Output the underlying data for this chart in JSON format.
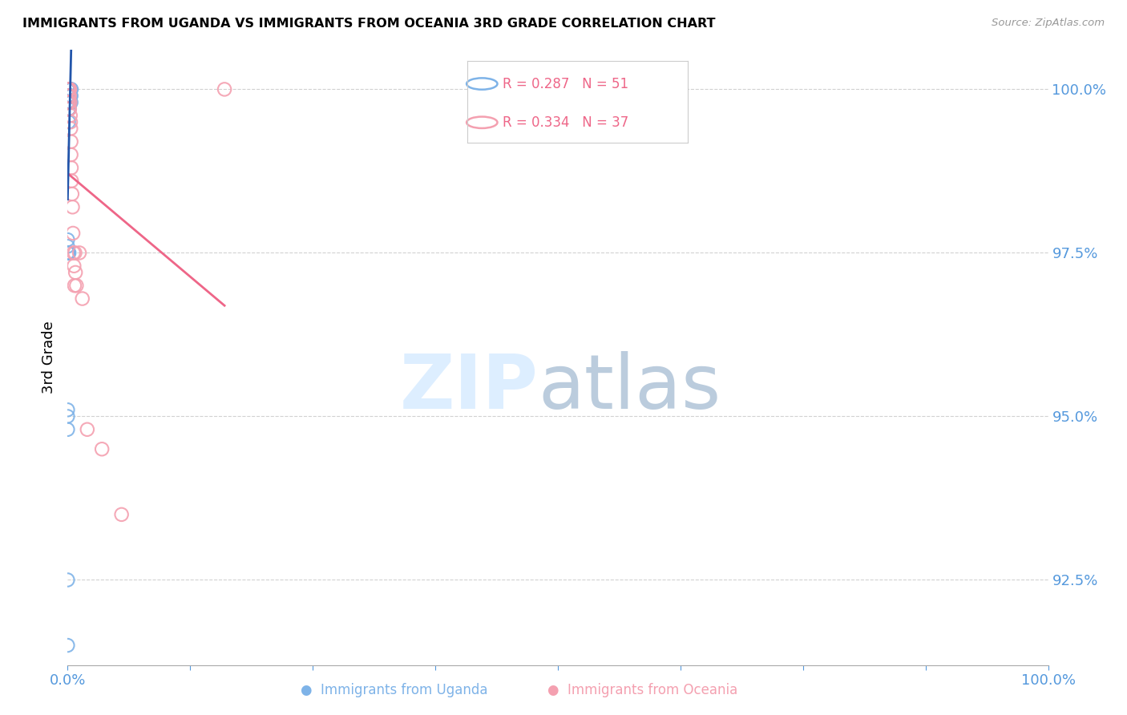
{
  "title": "IMMIGRANTS FROM UGANDA VS IMMIGRANTS FROM OCEANIA 3RD GRADE CORRELATION CHART",
  "source": "Source: ZipAtlas.com",
  "ylabel": "3rd Grade",
  "ytick_values": [
    92.5,
    95.0,
    97.5,
    100.0
  ],
  "xlim": [
    0.0,
    100.0
  ],
  "ylim": [
    91.2,
    100.6
  ],
  "color_uganda": "#7EB3E8",
  "color_oceania": "#F4A0B0",
  "color_trendline_uganda": "#2255AA",
  "color_trendline_oceania": "#EE6688",
  "color_axis_labels": "#5599DD",
  "background_color": "#FFFFFF",
  "uganda_x": [
    0.0,
    0.0,
    0.0,
    0.0,
    0.0,
    0.0,
    0.0,
    0.0,
    0.0,
    0.0,
    0.05,
    0.05,
    0.05,
    0.05,
    0.08,
    0.08,
    0.1,
    0.1,
    0.1,
    0.1,
    0.12,
    0.12,
    0.15,
    0.15,
    0.15,
    0.18,
    0.18,
    0.2,
    0.2,
    0.2,
    0.22,
    0.25,
    0.25,
    0.28,
    0.3,
    0.3,
    0.32,
    0.35,
    0.35,
    0.38,
    0.0,
    0.0,
    0.0,
    0.05,
    0.1,
    0.0,
    0.0,
    0.15,
    0.0,
    0.0,
    0.0
  ],
  "uganda_y": [
    100.0,
    100.0,
    100.0,
    100.0,
    100.0,
    100.0,
    100.0,
    100.0,
    99.8,
    99.8,
    100.0,
    100.0,
    99.9,
    99.9,
    100.0,
    99.8,
    100.0,
    100.0,
    99.7,
    99.5,
    100.0,
    99.8,
    100.0,
    99.9,
    99.8,
    100.0,
    99.7,
    100.0,
    99.9,
    99.8,
    100.0,
    100.0,
    99.9,
    99.8,
    100.0,
    99.9,
    100.0,
    99.9,
    99.8,
    100.0,
    97.7,
    97.6,
    97.5,
    97.5,
    97.5,
    95.0,
    94.8,
    97.5,
    95.1,
    92.5,
    91.5
  ],
  "oceania_x": [
    0.0,
    0.0,
    0.05,
    0.05,
    0.08,
    0.1,
    0.1,
    0.12,
    0.15,
    0.15,
    0.18,
    0.2,
    0.2,
    0.22,
    0.25,
    0.28,
    0.3,
    0.32,
    0.35,
    0.35,
    0.38,
    0.4,
    0.45,
    0.5,
    0.55,
    0.6,
    0.65,
    0.7,
    0.75,
    0.8,
    0.9,
    1.2,
    1.5,
    2.0,
    3.5,
    5.5,
    16.0
  ],
  "oceania_y": [
    100.0,
    99.8,
    100.0,
    99.8,
    99.9,
    100.0,
    99.8,
    99.9,
    100.0,
    99.7,
    100.0,
    99.9,
    99.7,
    100.0,
    99.8,
    99.6,
    99.5,
    99.4,
    99.2,
    99.0,
    98.8,
    98.6,
    98.4,
    98.2,
    97.8,
    97.5,
    97.3,
    97.0,
    97.5,
    97.2,
    97.0,
    97.5,
    96.8,
    94.8,
    94.5,
    93.5,
    100.0
  ]
}
